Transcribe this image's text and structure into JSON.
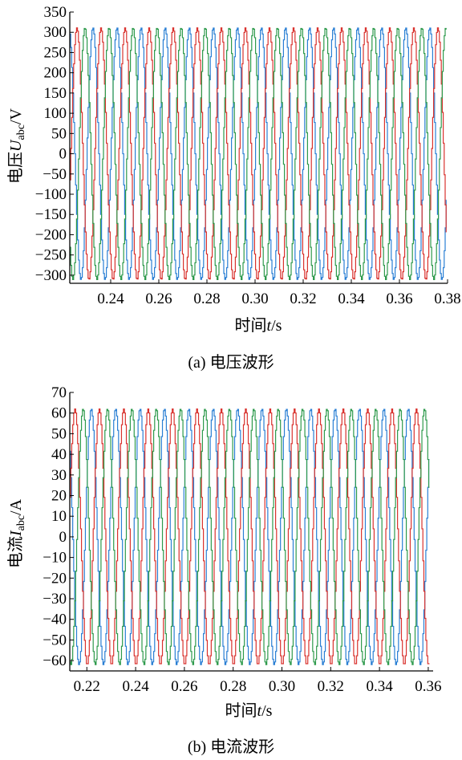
{
  "chart_data": [
    {
      "type": "line",
      "title": "",
      "caption": "(a) 电压波形",
      "xlabel": "时间t/s",
      "ylabel": "电压Uabc/V",
      "ylabel_parts": {
        "prefix": "电压",
        "var": "U",
        "sub": "abc",
        "unit": "/V"
      },
      "xlabel_parts": {
        "prefix": "时间",
        "var": "t",
        "unit": "/s"
      },
      "xlim": [
        0.223,
        0.38
      ],
      "ylim": [
        -320,
        350
      ],
      "xticks": [
        0.24,
        0.26,
        0.28,
        0.3,
        0.32,
        0.34,
        0.36,
        0.38
      ],
      "xtick_labels": [
        "0.24",
        "0.26",
        "0.28",
        "0.30",
        "0.32",
        "0.34",
        "0.36",
        "0.38"
      ],
      "yticks": [
        -300,
        -250,
        -200,
        -150,
        -100,
        -50,
        0,
        50,
        100,
        150,
        200,
        250,
        300,
        350
      ],
      "ytick_labels": [
        "−300",
        "−250",
        "−200",
        "−150",
        "−100",
        "−50",
        "0",
        "50",
        "100",
        "150",
        "200",
        "250",
        "300",
        "350"
      ],
      "grid": false,
      "frequency_hz": 100,
      "series": [
        {
          "color": "#2a7fd4",
          "amplitude": 311,
          "phase_deg": 0
        },
        {
          "color": "#d9322e",
          "amplitude": 311,
          "phase_deg": -120
        },
        {
          "color": "#2e9a4c",
          "amplitude": 311,
          "phase_deg": 120
        }
      ],
      "x_end": 0.3795
    },
    {
      "type": "line",
      "title": "",
      "caption": "(b) 电流波形",
      "xlabel": "时间t/s",
      "ylabel": "电流Iabc/A",
      "ylabel_parts": {
        "prefix": "电流",
        "var": "I",
        "sub": "abc",
        "unit": "/A"
      },
      "xlabel_parts": {
        "prefix": "时间",
        "var": "t",
        "unit": "/s"
      },
      "xlim": [
        0.213,
        0.362
      ],
      "ylim": [
        -65,
        70
      ],
      "xticks": [
        0.22,
        0.24,
        0.26,
        0.28,
        0.3,
        0.32,
        0.34,
        0.36
      ],
      "xtick_labels": [
        "0.22",
        "0.24",
        "0.26",
        "0.28",
        "0.30",
        "0.32",
        "0.34",
        "0.36"
      ],
      "yticks": [
        -60,
        -50,
        -40,
        -30,
        -20,
        -10,
        0,
        10,
        20,
        30,
        40,
        50,
        60,
        70
      ],
      "ytick_labels": [
        "−60",
        "−50",
        "−40",
        "−30",
        "−20",
        "−10",
        "0",
        "10",
        "20",
        "30",
        "40",
        "50",
        "60",
        "70"
      ],
      "grid": false,
      "frequency_hz": 100,
      "series": [
        {
          "color": "#2a7fd4",
          "amplitude": 62,
          "phase_deg": 30
        },
        {
          "color": "#d9322e",
          "amplitude": 62,
          "phase_deg": -90
        },
        {
          "color": "#2e9a4c",
          "amplitude": 62,
          "phase_deg": 150
        }
      ],
      "x_end": 0.3605
    }
  ]
}
